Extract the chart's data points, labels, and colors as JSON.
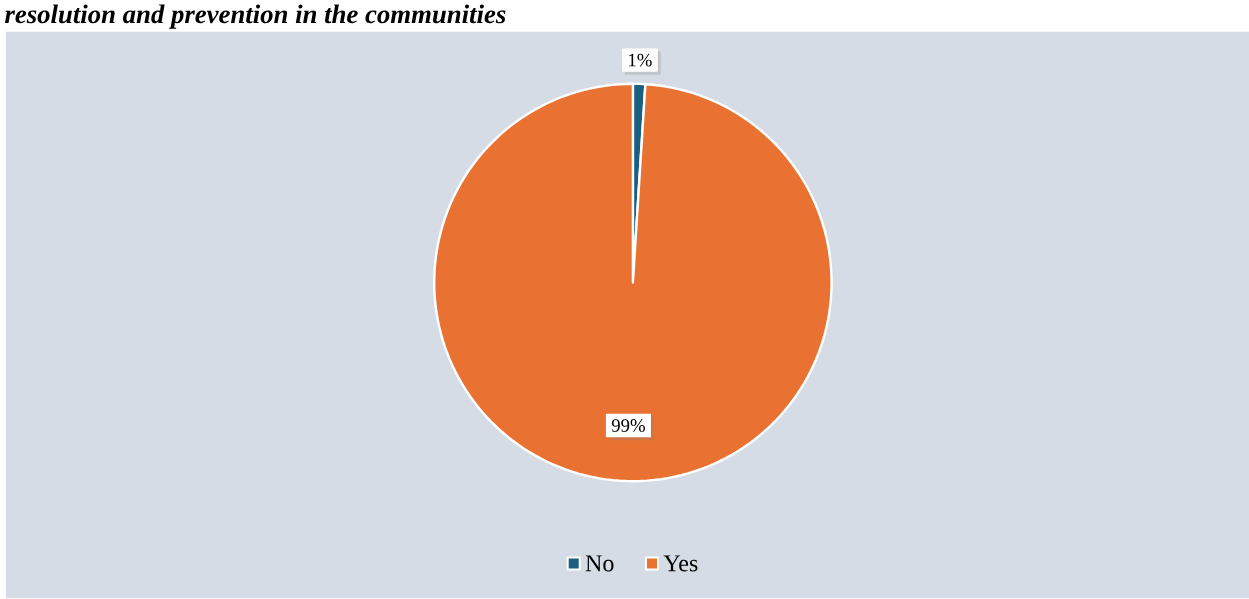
{
  "chart_data": {
    "type": "pie",
    "title": "resolution and prevention in the communities",
    "categories": [
      "No",
      "Yes"
    ],
    "values": [
      1,
      99
    ],
    "colors": [
      "#1b5e80",
      "#e97132"
    ],
    "value_labels": [
      "1%",
      "99%"
    ],
    "legend": "bottom"
  }
}
